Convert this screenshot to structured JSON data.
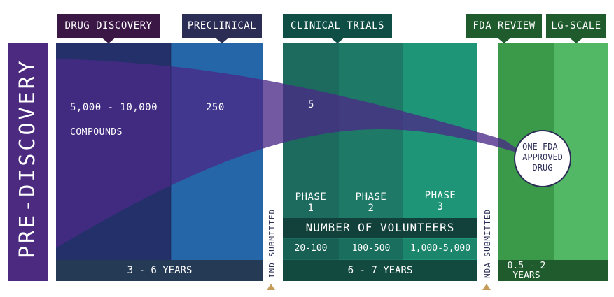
{
  "sidebar": {
    "label": "PRE-DISCOVERY"
  },
  "tags": {
    "drug_discovery": "DRUG DISCOVERY",
    "preclinical": "PRECLINICAL",
    "clinical_trials": "CLINICAL TRIALS",
    "fda_review": "FDA REVIEW",
    "lg_scale": "LG-SCALE"
  },
  "counts": {
    "discovery_range": "5,000 - 10,000",
    "discovery_unit": "COMPOUNDS",
    "preclinical": "250",
    "clinical": "5"
  },
  "phases": [
    {
      "label": "PHASE",
      "num": "1",
      "volunteers": "20-100"
    },
    {
      "label": "PHASE",
      "num": "2",
      "volunteers": "100-500"
    },
    {
      "label": "PHASE",
      "num": "3",
      "volunteers": "1,000-5,000"
    }
  ],
  "volunteers_header": "NUMBER OF VOLUNTEERS",
  "submissions": {
    "ind": "IND SUBMITTED",
    "nda": "NDA SUBMITTED"
  },
  "durations": {
    "discovery_preclinical": "3 - 6 YEARS",
    "clinical": "6 - 7 YEARS",
    "fda_line1": "0.5 - 2",
    "fda_line2": "YEARS"
  },
  "result": {
    "line1": "ONE FDA-",
    "line2": "APPROVED",
    "line3": "DRUG"
  },
  "colors": {
    "sidebar": "#4b2a80",
    "discovery": "#23306a",
    "preclinical": "#2466a8",
    "phase1": "#1c6b5e",
    "phase2": "#1e7a67",
    "phase3": "#1f9577",
    "fda": "#3a9a4a",
    "lgscale": "#52b866",
    "funnel": "#4a2a86"
  }
}
